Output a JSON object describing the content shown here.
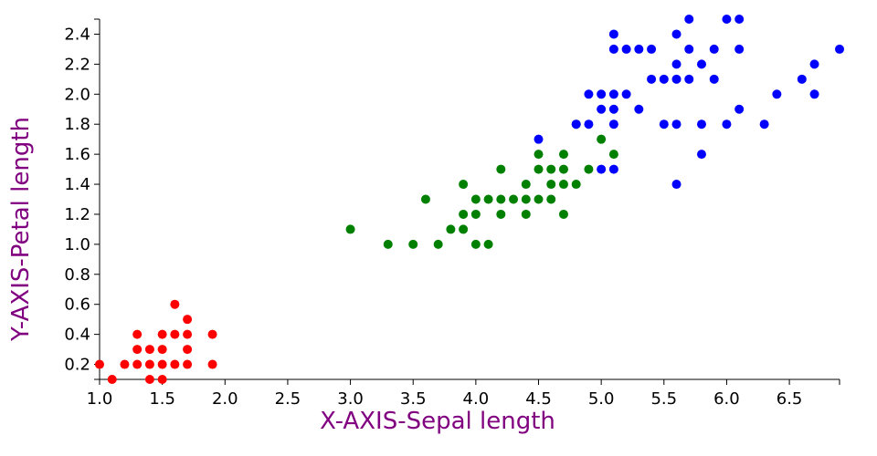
{
  "chart_data": {
    "type": "scatter",
    "xlabel": "X-AXIS-Sepal length",
    "ylabel": "Y-AXIS-Petal length",
    "label_color": "#800080",
    "xlim": [
      1.0,
      6.9
    ],
    "ylim": [
      0.1,
      2.5
    ],
    "xticks": [
      1.0,
      1.5,
      2.0,
      2.5,
      3.0,
      3.5,
      4.0,
      4.5,
      5.0,
      5.5,
      6.0,
      6.5
    ],
    "xtick_labels": [
      "1.0",
      "1.5",
      "2.0",
      "2.5",
      "3.0",
      "3.5",
      "4.0",
      "4.5",
      "5.0",
      "5.5",
      "6.0",
      "6.5"
    ],
    "yticks": [
      0.2,
      0.4,
      0.6,
      0.8,
      1.0,
      1.2,
      1.4,
      1.6,
      1.8,
      2.0,
      2.2,
      2.4
    ],
    "ytick_labels": [
      "0.2",
      "0.4",
      "0.6",
      "0.8",
      "1.0",
      "1.2",
      "1.4",
      "1.6",
      "1.8",
      "2.0",
      "2.2",
      "2.4"
    ],
    "grid": false,
    "series": [
      {
        "color": "#ff0000",
        "points": [
          [
            1.0,
            0.2
          ],
          [
            1.1,
            0.1
          ],
          [
            1.2,
            0.2
          ],
          [
            1.3,
            0.2
          ],
          [
            1.3,
            0.3
          ],
          [
            1.3,
            0.4
          ],
          [
            1.4,
            0.1
          ],
          [
            1.4,
            0.2
          ],
          [
            1.4,
            0.3
          ],
          [
            1.5,
            0.1
          ],
          [
            1.5,
            0.2
          ],
          [
            1.5,
            0.3
          ],
          [
            1.5,
            0.4
          ],
          [
            1.6,
            0.2
          ],
          [
            1.6,
            0.4
          ],
          [
            1.6,
            0.6
          ],
          [
            1.7,
            0.2
          ],
          [
            1.7,
            0.3
          ],
          [
            1.7,
            0.4
          ],
          [
            1.7,
            0.5
          ],
          [
            1.9,
            0.2
          ],
          [
            1.9,
            0.4
          ]
        ]
      },
      {
        "color": "#008000",
        "points": [
          [
            3.0,
            1.1
          ],
          [
            3.3,
            1.0
          ],
          [
            3.5,
            1.0
          ],
          [
            3.6,
            1.3
          ],
          [
            3.7,
            1.0
          ],
          [
            3.8,
            1.1
          ],
          [
            3.9,
            1.1
          ],
          [
            3.9,
            1.2
          ],
          [
            3.9,
            1.4
          ],
          [
            4.0,
            1.0
          ],
          [
            4.0,
            1.2
          ],
          [
            4.0,
            1.3
          ],
          [
            4.1,
            1.0
          ],
          [
            4.1,
            1.3
          ],
          [
            4.2,
            1.2
          ],
          [
            4.2,
            1.3
          ],
          [
            4.2,
            1.5
          ],
          [
            4.3,
            1.3
          ],
          [
            4.4,
            1.2
          ],
          [
            4.4,
            1.3
          ],
          [
            4.4,
            1.4
          ],
          [
            4.5,
            1.3
          ],
          [
            4.5,
            1.5
          ],
          [
            4.5,
            1.6
          ],
          [
            4.6,
            1.3
          ],
          [
            4.6,
            1.4
          ],
          [
            4.6,
            1.5
          ],
          [
            4.7,
            1.2
          ],
          [
            4.7,
            1.4
          ],
          [
            4.7,
            1.5
          ],
          [
            4.7,
            1.6
          ],
          [
            4.8,
            1.4
          ],
          [
            4.8,
            1.8
          ],
          [
            4.9,
            1.5
          ],
          [
            5.0,
            1.7
          ],
          [
            5.1,
            1.6
          ]
        ]
      },
      {
        "color": "#0000ff",
        "points": [
          [
            4.5,
            1.7
          ],
          [
            4.8,
            1.8
          ],
          [
            4.9,
            1.8
          ],
          [
            4.9,
            2.0
          ],
          [
            5.0,
            1.5
          ],
          [
            5.0,
            1.9
          ],
          [
            5.0,
            2.0
          ],
          [
            5.1,
            1.5
          ],
          [
            5.1,
            1.8
          ],
          [
            5.1,
            1.9
          ],
          [
            5.1,
            2.0
          ],
          [
            5.1,
            2.3
          ],
          [
            5.1,
            2.4
          ],
          [
            5.2,
            2.0
          ],
          [
            5.2,
            2.3
          ],
          [
            5.3,
            1.9
          ],
          [
            5.3,
            2.3
          ],
          [
            5.4,
            2.1
          ],
          [
            5.4,
            2.3
          ],
          [
            5.5,
            1.8
          ],
          [
            5.5,
            2.1
          ],
          [
            5.6,
            1.4
          ],
          [
            5.6,
            1.8
          ],
          [
            5.6,
            2.1
          ],
          [
            5.6,
            2.2
          ],
          [
            5.6,
            2.4
          ],
          [
            5.7,
            2.1
          ],
          [
            5.7,
            2.3
          ],
          [
            5.7,
            2.5
          ],
          [
            5.8,
            1.6
          ],
          [
            5.8,
            1.8
          ],
          [
            5.8,
            2.2
          ],
          [
            5.9,
            2.1
          ],
          [
            5.9,
            2.3
          ],
          [
            6.0,
            1.8
          ],
          [
            6.0,
            2.5
          ],
          [
            6.1,
            1.9
          ],
          [
            6.1,
            2.3
          ],
          [
            6.1,
            2.5
          ],
          [
            6.3,
            1.8
          ],
          [
            6.4,
            2.0
          ],
          [
            6.6,
            2.1
          ],
          [
            6.7,
            2.0
          ],
          [
            6.7,
            2.2
          ],
          [
            6.9,
            2.3
          ]
        ]
      }
    ]
  }
}
